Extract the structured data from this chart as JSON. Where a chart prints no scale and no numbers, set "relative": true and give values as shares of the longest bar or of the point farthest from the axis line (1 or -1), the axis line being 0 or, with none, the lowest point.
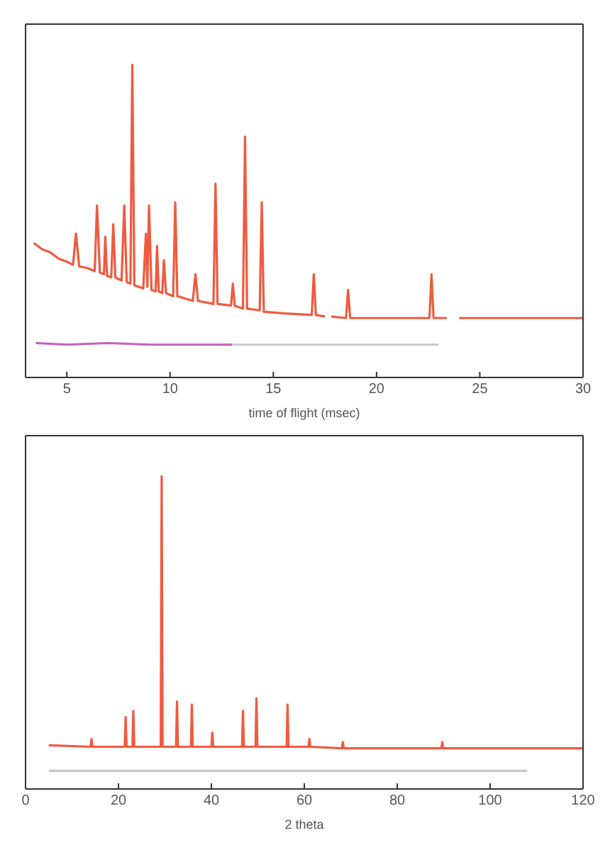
{
  "chart_data": [
    {
      "type": "line",
      "xlabel": "time of flight (msec)",
      "relative": true,
      "tick_labels": "x",
      "xlim": [
        3,
        30
      ],
      "xticks": [
        5,
        10,
        15,
        20,
        25,
        30
      ],
      "series": [
        {
          "color": "#f05a40",
          "x": [
            3.4,
            3.8,
            4.2,
            4.6,
            5.0,
            5.3,
            5.44,
            5.6,
            6.0,
            6.35,
            6.46,
            6.6,
            6.8,
            6.86,
            6.95,
            7.15,
            7.25,
            7.35,
            7.65,
            7.78,
            7.9,
            8.08,
            8.17,
            8.27,
            8.7,
            8.83,
            8.9,
            8.98,
            9.1,
            9.3,
            9.37,
            9.45,
            9.62,
            9.7,
            9.8,
            10.15,
            10.25,
            10.35,
            11.1,
            11.23,
            11.35,
            12.1,
            12.2,
            12.3,
            12.95,
            13.04,
            13.13,
            13.53,
            13.63,
            13.73,
            14.34,
            14.44,
            14.54,
            15.5,
            16.86,
            16.96,
            17.06,
            17.5,
            17.7,
            17.8,
            18.52,
            18.62,
            18.72,
            22.0,
            22.56,
            22.66,
            22.76,
            23.4,
            23.6,
            24.0,
            30
          ],
          "values": [
            0.43,
            0.41,
            0.4,
            0.38,
            0.37,
            0.36,
            0.46,
            0.355,
            0.35,
            0.34,
            0.55,
            0.335,
            0.33,
            0.45,
            0.325,
            0.32,
            0.49,
            0.32,
            0.31,
            0.55,
            0.305,
            0.3,
            1.0,
            0.295,
            0.285,
            0.46,
            0.29,
            0.55,
            0.28,
            0.275,
            0.42,
            0.275,
            0.27,
            0.375,
            0.27,
            0.26,
            0.56,
            0.26,
            0.245,
            0.33,
            0.245,
            0.235,
            0.62,
            0.235,
            0.23,
            0.3,
            0.23,
            0.22,
            0.77,
            0.22,
            0.215,
            0.56,
            0.21,
            0.205,
            0.2,
            0.33,
            0.2,
            0.195,
            null,
            0.195,
            0.19,
            0.28,
            0.19,
            0.19,
            0.19,
            0.33,
            0.19,
            0.19,
            null,
            0.19,
            0.19
          ]
        },
        {
          "color": "#c060c0",
          "x": [
            3.5,
            5,
            7,
            9,
            11,
            13
          ],
          "values": [
            0.11,
            0.105,
            0.11,
            0.105,
            0.105,
            0.105
          ]
        },
        {
          "color": "#c8c8c8",
          "x": [
            13,
            15,
            18,
            20,
            23
          ],
          "values": [
            0.105,
            0.105,
            0.105,
            0.105,
            0.105
          ]
        }
      ]
    },
    {
      "type": "line",
      "xlabel": "2 theta",
      "relative": true,
      "tick_labels": "x",
      "xlim": [
        0,
        120
      ],
      "xticks": [
        0,
        20,
        40,
        60,
        80,
        100,
        120
      ],
      "series": [
        {
          "color": "#f05a40",
          "x": [
            5,
            14.0,
            14.2,
            14.4,
            21.35,
            21.55,
            21.75,
            23.0,
            23.2,
            23.4,
            29.1,
            29.3,
            29.5,
            32.4,
            32.6,
            32.8,
            35.6,
            35.8,
            36.0,
            40.0,
            40.2,
            40.4,
            46.6,
            46.8,
            47.0,
            49.5,
            49.7,
            49.9,
            56.2,
            56.4,
            56.6,
            60.9,
            61.1,
            61.3,
            68.1,
            68.3,
            68.5,
            89.5,
            89.7,
            89.9,
            120
          ],
          "values": [
            0.14,
            0.135,
            0.16,
            0.135,
            0.135,
            0.23,
            0.135,
            0.135,
            0.25,
            0.135,
            0.135,
            1.0,
            0.135,
            0.135,
            0.28,
            0.135,
            0.135,
            0.27,
            0.135,
            0.135,
            0.18,
            0.135,
            0.135,
            0.25,
            0.135,
            0.135,
            0.29,
            0.135,
            0.135,
            0.27,
            0.135,
            0.135,
            0.16,
            0.135,
            0.13,
            0.15,
            0.13,
            0.13,
            0.15,
            0.13,
            0.13
          ]
        },
        {
          "color": "#c8c8c8",
          "x": [
            5,
            30,
            60,
            90,
            108
          ],
          "values": [
            0.058,
            0.058,
            0.058,
            0.058,
            0.058
          ]
        }
      ]
    }
  ]
}
